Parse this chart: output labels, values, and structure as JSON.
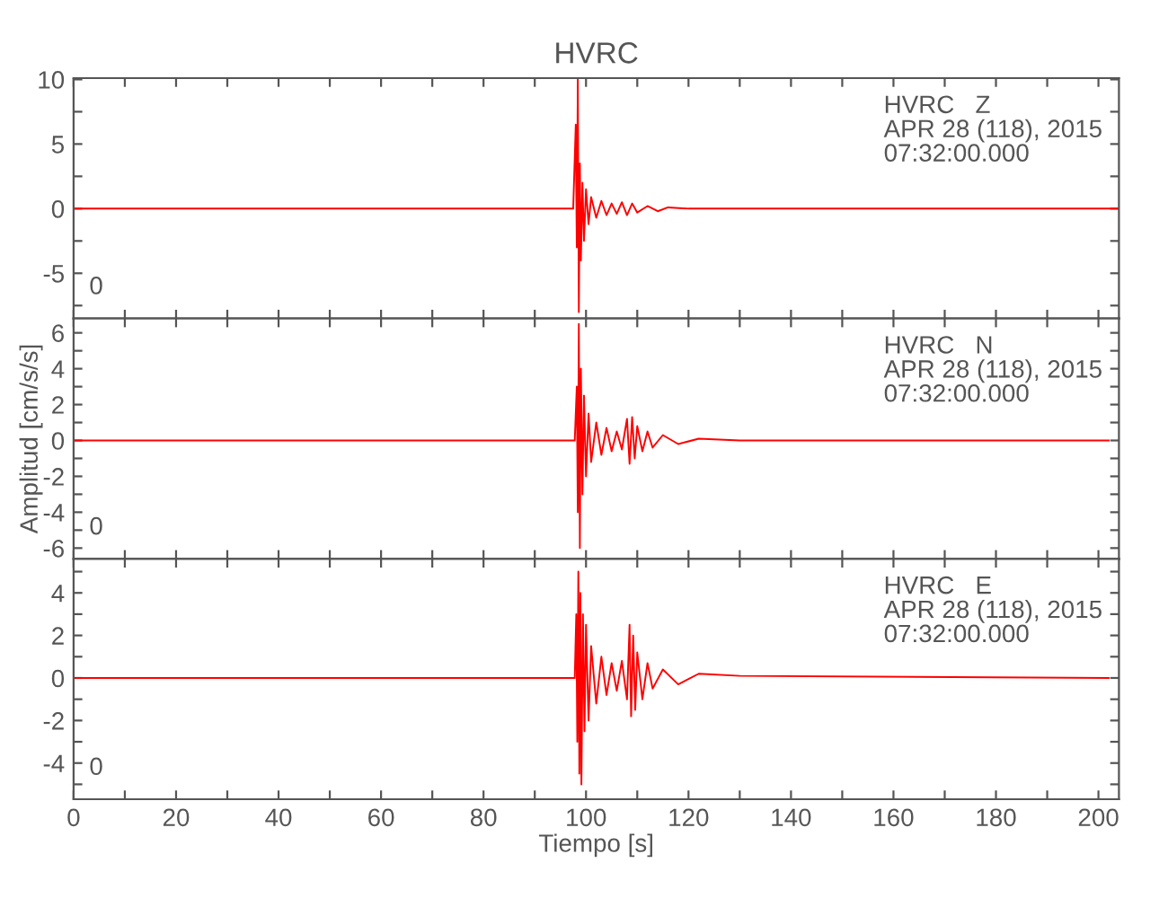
{
  "chart_data": [
    {
      "type": "line",
      "title": "HVRC",
      "tick_labels": "y",
      "xlim": [
        0,
        204
      ],
      "ylim": [
        -8.5,
        10.1
      ],
      "xticks": [
        0,
        {
          "value": 10,
          "label": null
        },
        20,
        {
          "value": 30,
          "label": null
        },
        40,
        {
          "value": 50,
          "label": null
        },
        60,
        {
          "value": 70,
          "label": null
        },
        80,
        {
          "value": 90,
          "label": null
        },
        100,
        {
          "value": 110,
          "label": null
        },
        120,
        {
          "value": 130,
          "label": null
        },
        140,
        {
          "value": 150,
          "label": null
        },
        160,
        {
          "value": 170,
          "label": null
        },
        180,
        {
          "value": 190,
          "label": null
        },
        200
      ],
      "yticks": [
        {
          "value": -7.5,
          "label": null
        },
        -5,
        {
          "value": -2.5,
          "label": null
        },
        0,
        {
          "value": 2.5,
          "label": null
        },
        5,
        {
          "value": 7.5,
          "label": null
        },
        10
      ],
      "annotations": [
        "HVRC   Z\nAPR 28 (118), 2015\n07:32:00.000",
        "0"
      ],
      "series": [
        {
          "color": "#ff0000",
          "x": [
            0,
            97.5,
            98.0,
            98.2,
            98.4,
            98.6,
            98.8,
            99.0,
            99.3,
            99.6,
            100,
            100.5,
            101,
            102,
            103,
            104,
            105,
            106,
            107,
            108,
            109,
            110,
            112,
            114,
            116,
            120,
            130,
            204
          ],
          "values": [
            0,
            0,
            6.5,
            -3,
            10,
            -8,
            3.5,
            -4,
            2,
            -2.5,
            1.5,
            -1.2,
            0.9,
            -0.7,
            0.6,
            -0.5,
            0.4,
            -0.4,
            0.5,
            -0.5,
            0.4,
            -0.3,
            0.2,
            -0.2,
            0.1,
            0,
            0,
            0
          ]
        }
      ]
    },
    {
      "type": "line",
      "ylabel": "Amplitud [cm/s/s]",
      "tick_labels": "y",
      "xlim": [
        0,
        204
      ],
      "ylim": [
        -6.6,
        6.8
      ],
      "xticks": [
        0,
        {
          "value": 10,
          "label": null
        },
        20,
        {
          "value": 30,
          "label": null
        },
        40,
        {
          "value": 50,
          "label": null
        },
        60,
        {
          "value": 70,
          "label": null
        },
        80,
        {
          "value": 90,
          "label": null
        },
        100,
        {
          "value": 110,
          "label": null
        },
        120,
        {
          "value": 130,
          "label": null
        },
        140,
        {
          "value": 150,
          "label": null
        },
        160,
        {
          "value": 170,
          "label": null
        },
        180,
        {
          "value": 190,
          "label": null
        },
        200
      ],
      "yticks": [
        -6,
        {
          "value": -5,
          "label": null
        },
        -4,
        {
          "value": -3,
          "label": null
        },
        -2,
        {
          "value": -1,
          "label": null
        },
        0,
        {
          "value": 1,
          "label": null
        },
        2,
        {
          "value": 3,
          "label": null
        },
        4,
        {
          "value": 5,
          "label": null
        },
        6
      ],
      "annotations": [
        "HVRC   N\nAPR 28 (118), 2015\n07:32:00.000",
        "0"
      ],
      "series": [
        {
          "color": "#ff0000",
          "x": [
            0,
            97.8,
            98.2,
            98.4,
            98.6,
            98.8,
            99.0,
            99.3,
            99.6,
            100,
            100.5,
            101,
            102,
            103,
            104,
            105,
            106,
            107,
            108,
            108.5,
            109,
            109.5,
            110,
            111,
            112,
            113,
            115,
            118,
            122,
            130,
            202
          ],
          "values": [
            0,
            0,
            3,
            -4,
            6.5,
            -6,
            4,
            -3,
            2.5,
            -2,
            1.5,
            -1.2,
            1,
            -0.8,
            0.7,
            -0.6,
            0.5,
            -0.5,
            1.2,
            -1.3,
            1.3,
            -1,
            0.8,
            -0.6,
            0.5,
            -0.4,
            0.3,
            -0.2,
            0.1,
            0,
            0
          ]
        }
      ]
    },
    {
      "type": "line",
      "xlabel": "Tiempo [s]",
      "xlim": [
        0,
        204
      ],
      "ylim": [
        -5.7,
        5.6
      ],
      "xticks": [
        0,
        {
          "value": 10,
          "label": null
        },
        20,
        {
          "value": 30,
          "label": null
        },
        40,
        {
          "value": 50,
          "label": null
        },
        60,
        {
          "value": 70,
          "label": null
        },
        80,
        {
          "value": 90,
          "label": null
        },
        100,
        {
          "value": 110,
          "label": null
        },
        120,
        {
          "value": 130,
          "label": null
        },
        140,
        {
          "value": 150,
          "label": null
        },
        160,
        {
          "value": 170,
          "label": null
        },
        180,
        {
          "value": 190,
          "label": null
        },
        200
      ],
      "yticks": [
        {
          "value": -5,
          "label": null
        },
        -4,
        {
          "value": -3,
          "label": null
        },
        -2,
        {
          "value": -1,
          "label": null
        },
        0,
        {
          "value": 1,
          "label": null
        },
        2,
        {
          "value": 3,
          "label": null
        },
        4,
        {
          "value": 5,
          "label": null
        }
      ],
      "annotations": [
        "HVRC   E\nAPR 28 (118), 2015\n07:32:00.000",
        "0"
      ],
      "series": [
        {
          "color": "#ff0000",
          "x": [
            0,
            97.8,
            98.1,
            98.3,
            98.5,
            98.7,
            98.9,
            99.1,
            99.4,
            99.7,
            100,
            100.5,
            101,
            102,
            103,
            104,
            105,
            106,
            107,
            108,
            108.5,
            108.8,
            109.2,
            109.6,
            110,
            111,
            112,
            113,
            115,
            118,
            122,
            130,
            202
          ],
          "values": [
            0,
            0,
            3,
            -3,
            5,
            -4.5,
            4,
            -5,
            3,
            -2.5,
            2.5,
            -2,
            1.5,
            -1.2,
            1,
            -0.8,
            0.7,
            -0.6,
            0.8,
            -1,
            2.5,
            -1.8,
            2,
            -1.5,
            1.2,
            -1,
            0.7,
            -0.5,
            0.4,
            -0.3,
            0.2,
            0.1,
            0
          ]
        }
      ]
    }
  ]
}
